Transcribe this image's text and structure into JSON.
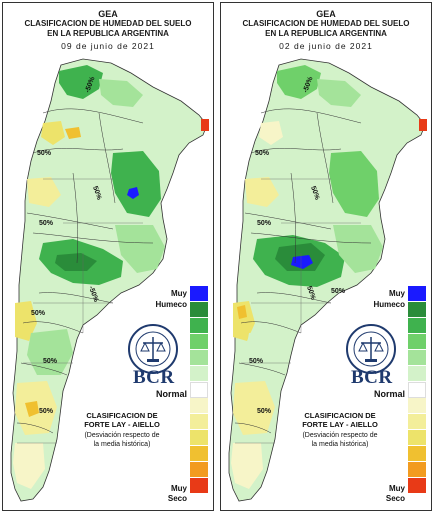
{
  "panels": [
    {
      "org": "GEA",
      "title_line1": "CLASIFICACION DE HUMEDAD DEL SUELO",
      "title_line2": "EN LA REPUBLICA ARGENTINA",
      "date": "09 de junio de 2021",
      "isoline_labels": [
        "-50%",
        "50%",
        "50%",
        "50%",
        "-50%",
        "50%",
        "50%",
        "50%"
      ]
    },
    {
      "org": "GEA",
      "title_line1": "CLASIFICACION DE HUMEDAD DEL SUELO",
      "title_line2": "EN LA REPUBLICA ARGENTINA",
      "date": "02 de junio de 2021",
      "isoline_labels": [
        "-50%",
        "50%",
        "50%",
        "50%",
        "50%",
        "50%",
        "50%",
        "50%"
      ]
    }
  ],
  "legend": {
    "muy_humedo_1": "Muy",
    "muy_humedo_2": "Humeco",
    "normal": "Normal",
    "muy_seco_1": "Muy",
    "muy_seco_2": "Seco",
    "colors": [
      "#1a1aff",
      "#2a8c3a",
      "#3fb24e",
      "#6fd06a",
      "#a4e39a",
      "#d3f2c9",
      "#ffffff",
      "#f7f5c8",
      "#f3ee9a",
      "#ede36a",
      "#f0c030",
      "#f29b1f",
      "#e83a17"
    ]
  },
  "brand": {
    "logo_text": "BCR",
    "seal_icon": "bolsa-de-comercio-seal-icon"
  },
  "classification": {
    "line1": "CLASIFICACION DE",
    "line2": "FORTE LAY - AIELLO",
    "desc1": "(Desviación respecto de",
    "desc2": "la media histórica)"
  }
}
